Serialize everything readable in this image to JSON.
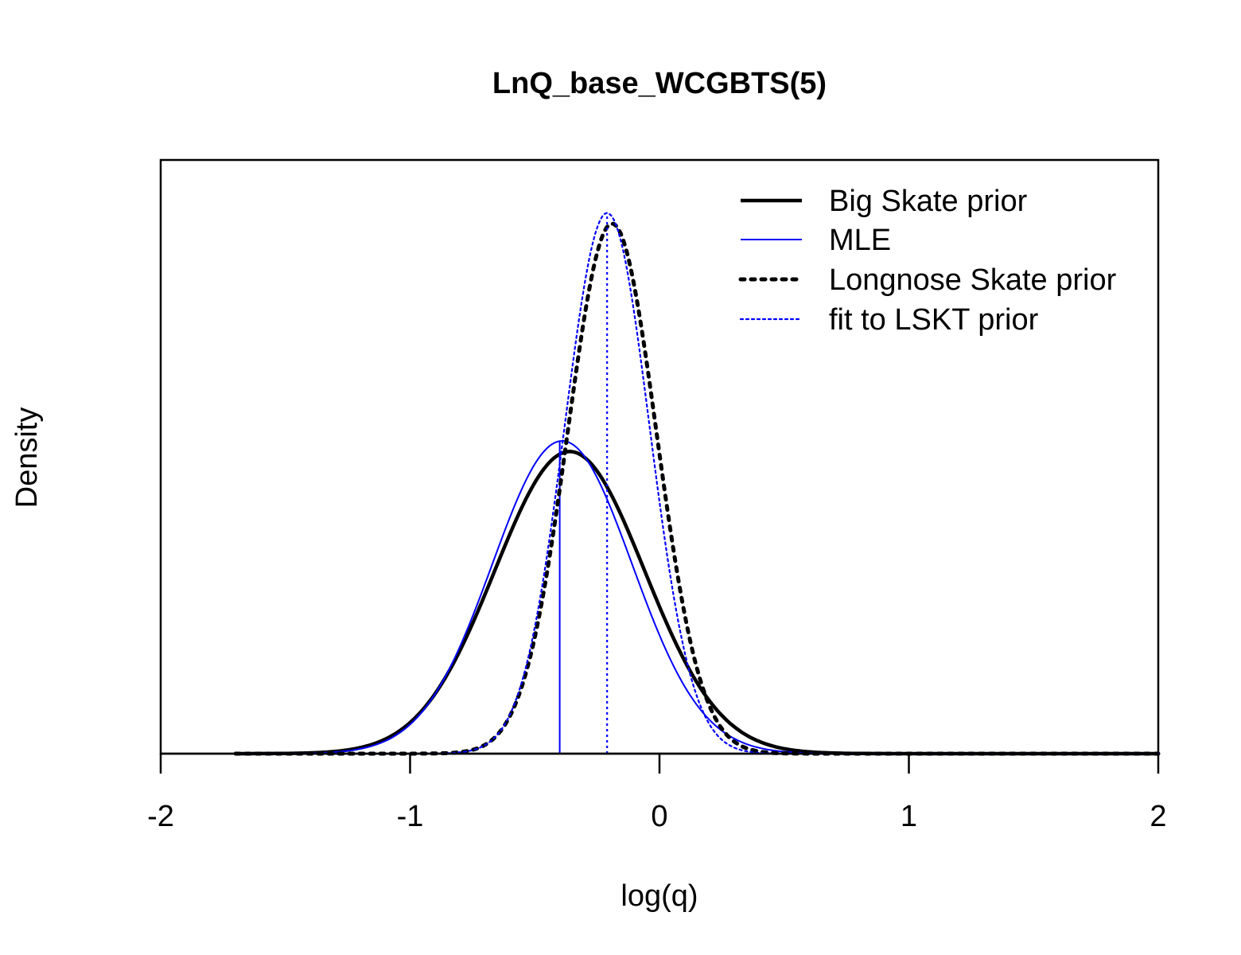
{
  "chart_data": {
    "type": "line",
    "title": "LnQ_base_WCGBTS(5)",
    "xlabel": "log(q)",
    "ylabel": "Density",
    "xlim": [
      -2,
      2
    ],
    "xticks": [
      "-2",
      "-1",
      "0",
      "1",
      "2"
    ],
    "ylim": [
      0,
      1.12
    ],
    "y_ticks_shown": false,
    "grid": false,
    "legend_position": "top-right",
    "series": [
      {
        "name": "Big Skate prior",
        "kind": "normal_curve",
        "mean": -0.36,
        "sd": 0.3,
        "peak_density": 0.57,
        "color": "#000000",
        "style": "solid-thick"
      },
      {
        "name": "MLE",
        "kind": "normal_curve",
        "mean": -0.39,
        "sd": 0.28,
        "peak_density": 0.59,
        "mle_line_x": -0.4,
        "color": "#0000ff",
        "style": "solid-thin"
      },
      {
        "name": "Longnose Skate prior",
        "kind": "normal_curve",
        "mean": -0.19,
        "sd": 0.178,
        "peak_density": 1.0,
        "color": "#000000",
        "style": "dotted-thick"
      },
      {
        "name": "fit to LSKT prior",
        "kind": "normal_curve",
        "mean": -0.21,
        "sd": 0.17,
        "peak_density": 1.02,
        "vline_x": -0.21,
        "color": "#0000ff",
        "style": "dotted-thin"
      }
    ]
  }
}
